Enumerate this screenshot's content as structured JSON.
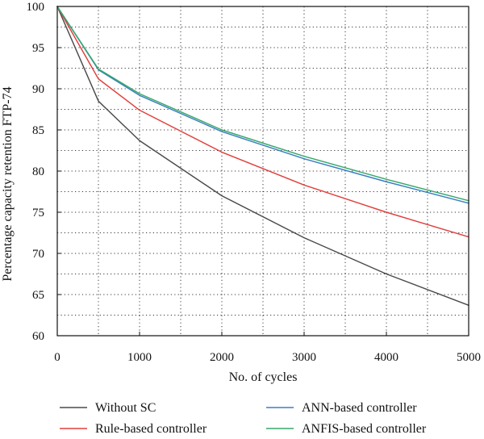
{
  "chart_data": {
    "type": "line",
    "title": "",
    "xlabel": "No. of cycles",
    "ylabel": "Percentage capacity retention FTP-74",
    "xlim": [
      0,
      5000
    ],
    "ylim": [
      60,
      100
    ],
    "x_ticks": [
      0,
      1000,
      2000,
      3000,
      4000,
      5000
    ],
    "y_ticks": [
      60,
      65,
      70,
      75,
      80,
      85,
      90,
      95,
      100
    ],
    "grid": true,
    "legend_position": "bottom",
    "x": [
      0,
      500,
      1000,
      2000,
      3000,
      4000,
      5000
    ],
    "series": [
      {
        "name": "Without SC",
        "color": "#4a4a4a",
        "values": [
          100,
          88.5,
          83.7,
          77.0,
          71.9,
          67.5,
          63.7
        ]
      },
      {
        "name": "Rule-based controller",
        "color": "#e0403c",
        "values": [
          100,
          91.2,
          87.4,
          82.3,
          78.3,
          75.0,
          72.0
        ]
      },
      {
        "name": "ANN-based controller",
        "color": "#3a7fc1",
        "values": [
          100,
          92.3,
          89.2,
          84.8,
          81.5,
          78.7,
          76.1
        ]
      },
      {
        "name": "ANFIS-based controller",
        "color": "#36a86b",
        "values": [
          100,
          92.4,
          89.4,
          85.0,
          81.8,
          79.0,
          76.4
        ]
      }
    ]
  }
}
